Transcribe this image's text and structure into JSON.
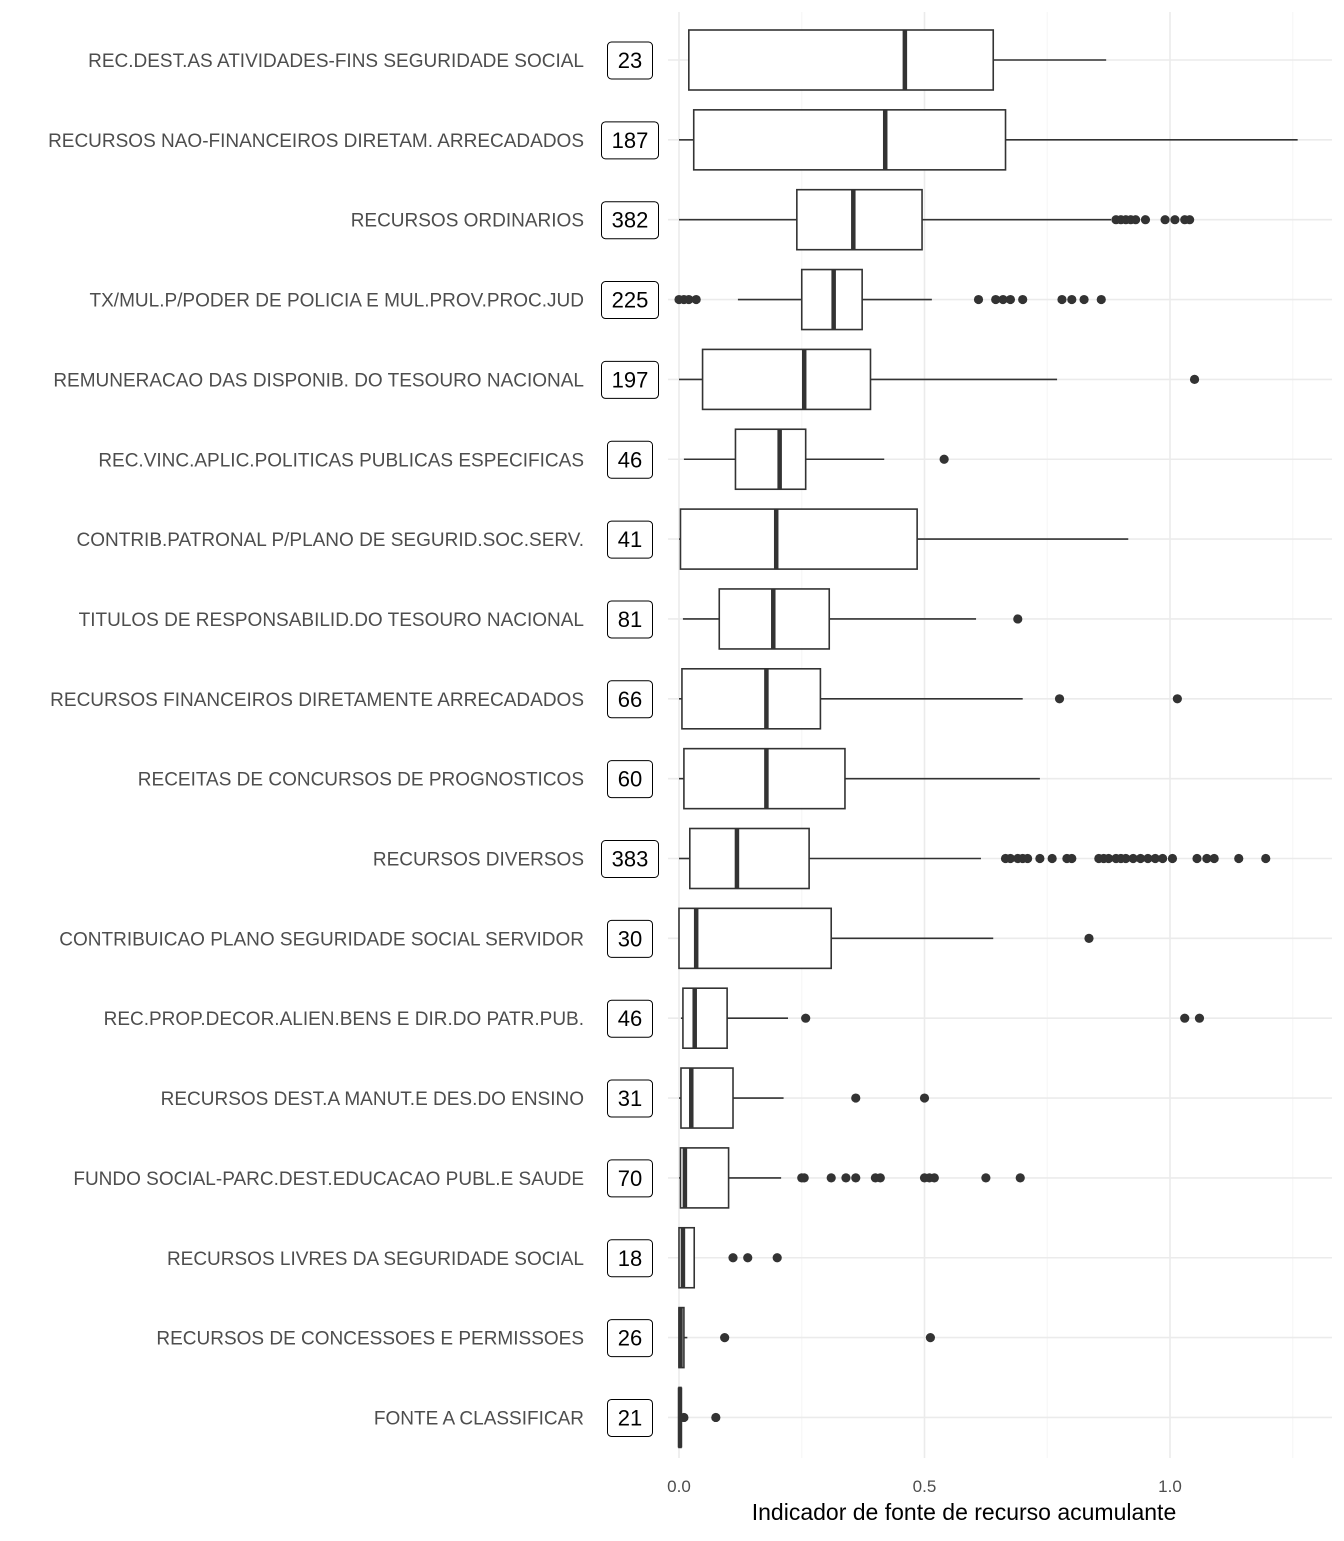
{
  "colors": {
    "background": "#ffffff",
    "grid_major": "#ebebeb",
    "grid_minor": "#f5f5f5",
    "box_stroke": "#333333",
    "outlier": "#333333",
    "label_text": "#4d4d4d",
    "count_text": "#000000"
  },
  "chart_data": {
    "type": "boxplot",
    "orientation": "horizontal",
    "title": "",
    "xlabel": "Indicador de fonte de recurso acumulante",
    "ylabel": "",
    "xlim": [
      0,
      1.3
    ],
    "x_ticks": [
      0.0,
      0.5,
      1.0
    ],
    "x_tick_labels": [
      "0.0",
      "0.5",
      "1.0"
    ],
    "grid": true,
    "legend": "none",
    "series": [
      {
        "category": "REC.DEST.AS ATIVIDADES-FINS SEGURIDADE SOCIAL",
        "n": "23",
        "min": 0.02,
        "q1": 0.02,
        "median": 0.46,
        "q3": 0.64,
        "max": 0.87,
        "outliers": []
      },
      {
        "category": "RECURSOS NAO-FINANCEIROS DIRETAM. ARRECADADOS",
        "n": "187",
        "min": 0.0,
        "q1": 0.03,
        "median": 0.42,
        "q3": 0.665,
        "max": 1.26,
        "outliers": []
      },
      {
        "category": "RECURSOS ORDINARIOS",
        "n": "382",
        "min": 0.0,
        "q1": 0.24,
        "median": 0.355,
        "q3": 0.495,
        "max": 0.88,
        "outliers": [
          0.89,
          0.9,
          0.91,
          0.92,
          0.93,
          0.95,
          0.99,
          1.01,
          1.03,
          1.04
        ]
      },
      {
        "category": "TX/MUL.P/PODER DE POLICIA E MUL.PROV.PROC.JUD",
        "n": "225",
        "min": 0.12,
        "q1": 0.25,
        "median": 0.315,
        "q3": 0.373,
        "max": 0.515,
        "outliers": [
          0.0,
          0.01,
          0.02,
          0.035,
          0.61,
          0.645,
          0.66,
          0.675,
          0.7,
          0.78,
          0.8,
          0.825,
          0.86
        ]
      },
      {
        "category": "REMUNERACAO DAS DISPONIB. DO TESOURO NACIONAL",
        "n": "197",
        "min": 0.0,
        "q1": 0.048,
        "median": 0.255,
        "q3": 0.39,
        "max": 0.77,
        "outliers": [
          1.05
        ]
      },
      {
        "category": "REC.VINC.APLIC.POLITICAS PUBLICAS ESPECIFICAS",
        "n": "46",
        "min": 0.01,
        "q1": 0.115,
        "median": 0.205,
        "q3": 0.258,
        "max": 0.418,
        "outliers": [
          0.54
        ]
      },
      {
        "category": "CONTRIB.PATRONAL P/PLANO DE SEGURID.SOC.SERV.",
        "n": "41",
        "min": 0.0,
        "q1": 0.003,
        "median": 0.198,
        "q3": 0.485,
        "max": 0.915,
        "outliers": []
      },
      {
        "category": "TITULOS DE RESPONSABILID.DO TESOURO NACIONAL",
        "n": "81",
        "min": 0.008,
        "q1": 0.082,
        "median": 0.192,
        "q3": 0.306,
        "max": 0.605,
        "outliers": [
          0.69
        ]
      },
      {
        "category": "RECURSOS FINANCEIROS DIRETAMENTE ARRECADADOS",
        "n": "66",
        "min": 0.0,
        "q1": 0.006,
        "median": 0.178,
        "q3": 0.288,
        "max": 0.7,
        "outliers": [
          0.775,
          1.015
        ]
      },
      {
        "category": "RECEITAS DE CONCURSOS DE PROGNOSTICOS",
        "n": "60",
        "min": 0.0,
        "q1": 0.01,
        "median": 0.178,
        "q3": 0.338,
        "max": 0.735,
        "outliers": []
      },
      {
        "category": "RECURSOS DIVERSOS",
        "n": "383",
        "min": 0.0,
        "q1": 0.022,
        "median": 0.118,
        "q3": 0.265,
        "max": 0.615,
        "outliers": [
          0.665,
          0.675,
          0.69,
          0.7,
          0.71,
          0.735,
          0.76,
          0.79,
          0.8,
          0.855,
          0.865,
          0.875,
          0.89,
          0.9,
          0.91,
          0.925,
          0.94,
          0.955,
          0.97,
          0.985,
          1.005,
          1.055,
          1.075,
          1.09,
          1.14,
          1.195
        ]
      },
      {
        "category": "CONTRIBUICAO PLANO SEGURIDADE SOCIAL SERVIDOR",
        "n": "30",
        "min": 0.0,
        "q1": 0.0,
        "median": 0.035,
        "q3": 0.31,
        "max": 0.64,
        "outliers": [
          0.835
        ]
      },
      {
        "category": "REC.PROP.DECOR.ALIEN.BENS E DIR.DO PATR.PUB.",
        "n": "46",
        "min": 0.004,
        "q1": 0.008,
        "median": 0.032,
        "q3": 0.098,
        "max": 0.222,
        "outliers": [
          0.258,
          1.03,
          1.06
        ]
      },
      {
        "category": "RECURSOS DEST.A MANUT.E DES.DO ENSINO",
        "n": "31",
        "min": 0.0,
        "q1": 0.004,
        "median": 0.025,
        "q3": 0.11,
        "max": 0.213,
        "outliers": [
          0.36,
          0.5
        ]
      },
      {
        "category": "FUNDO SOCIAL-PARC.DEST.EDUCACAO PUBL.E SAUDE",
        "n": "70",
        "min": 0.0,
        "q1": 0.003,
        "median": 0.012,
        "q3": 0.101,
        "max": 0.208,
        "outliers": [
          0.25,
          0.255,
          0.31,
          0.34,
          0.36,
          0.4,
          0.41,
          0.5,
          0.51,
          0.52,
          0.625,
          0.695
        ]
      },
      {
        "category": "RECURSOS LIVRES DA SEGURIDADE SOCIAL",
        "n": "18",
        "min": 0.0,
        "q1": 0.0,
        "median": 0.008,
        "q3": 0.031,
        "max": 0.031,
        "outliers": [
          0.11,
          0.14,
          0.2
        ]
      },
      {
        "category": "RECURSOS DE CONCESSOES E PERMISSOES",
        "n": "26",
        "min": 0.0,
        "q1": 0.0,
        "median": 0.003,
        "q3": 0.01,
        "max": 0.017,
        "outliers": [
          0.093,
          0.512
        ]
      },
      {
        "category": "FONTE A CLASSIFICAR",
        "n": "21",
        "min": 0.0,
        "q1": 0.0,
        "median": 0.002,
        "q3": 0.004,
        "max": 0.006,
        "outliers": [
          0.01,
          0.075
        ]
      }
    ]
  }
}
